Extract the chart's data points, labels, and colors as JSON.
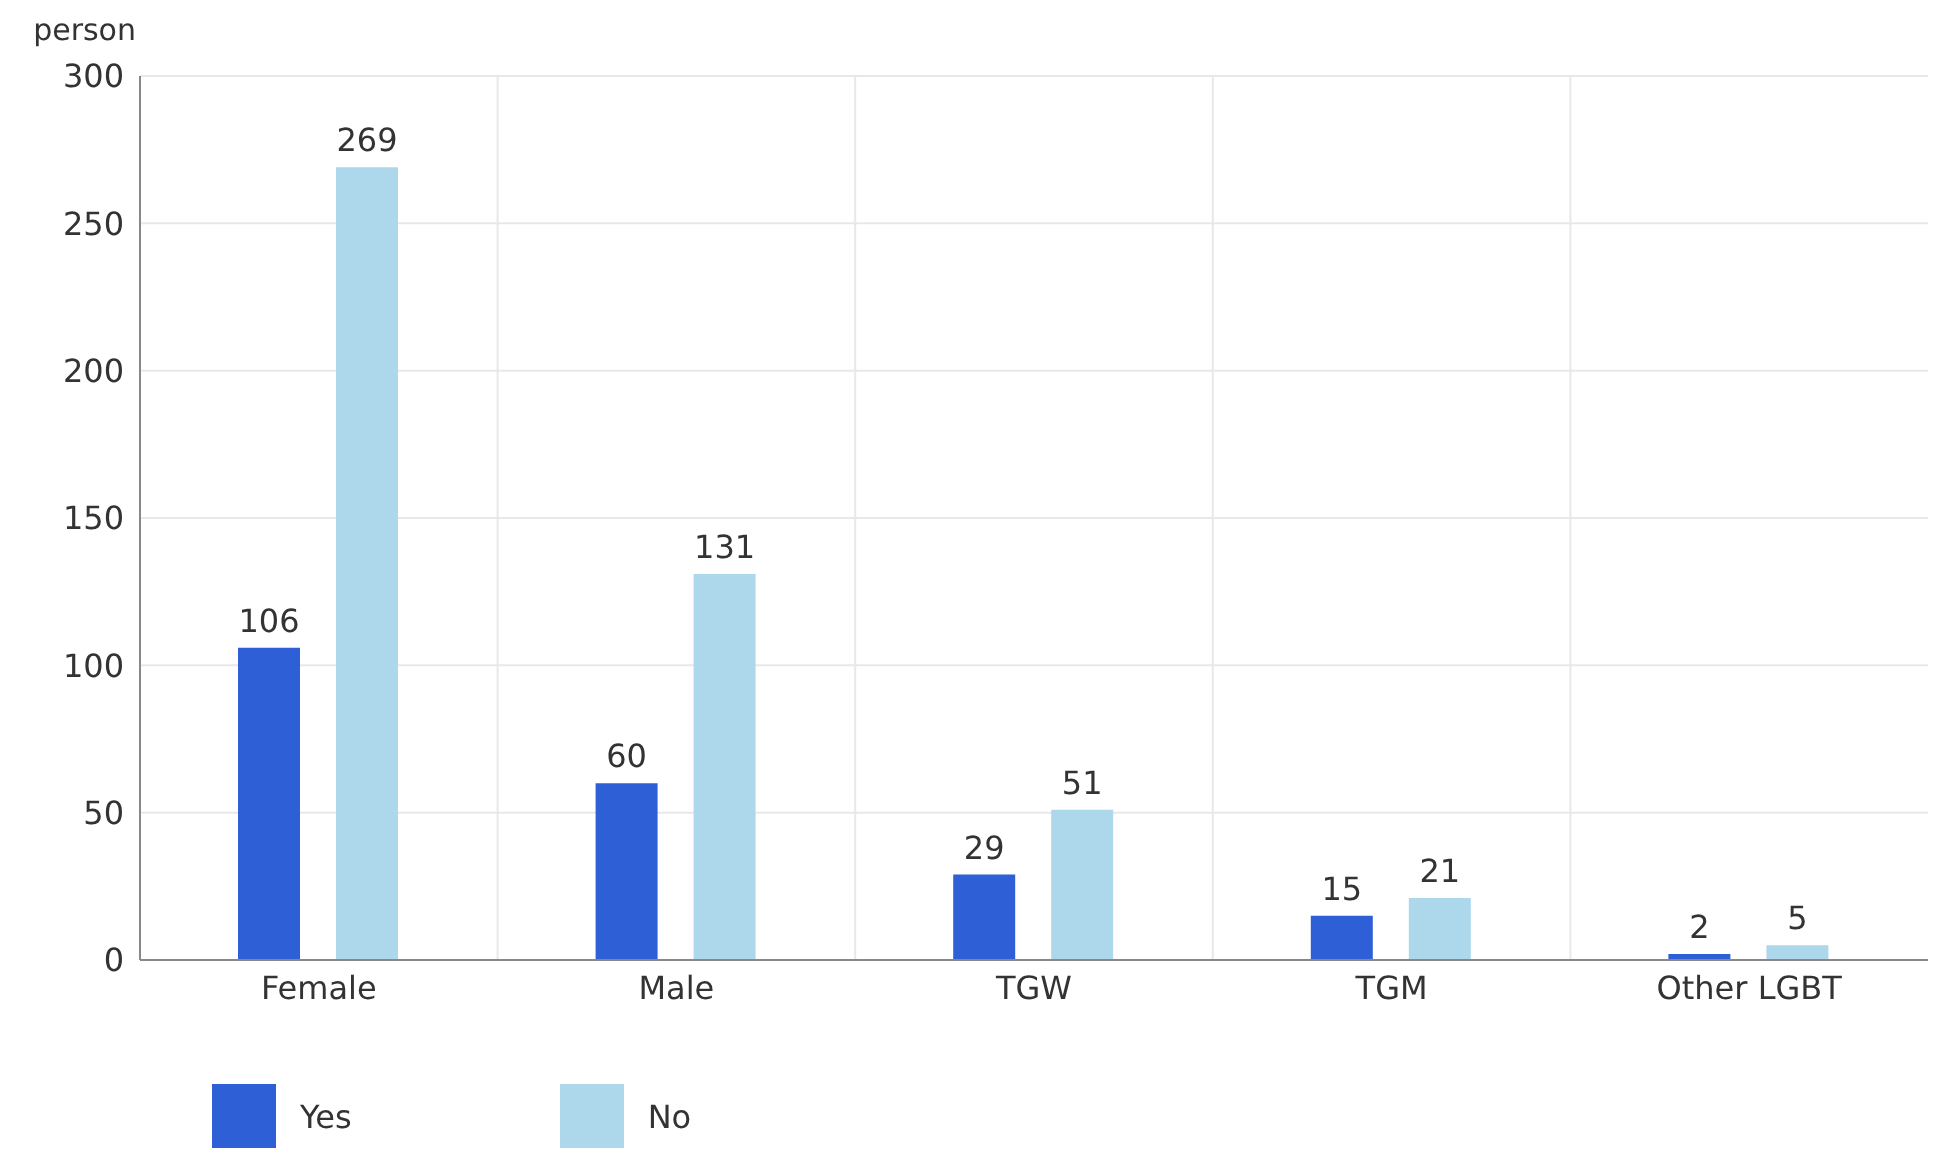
{
  "chart_data": {
    "type": "bar",
    "ylabel": "person",
    "categories": [
      "Female",
      "Male",
      "TGW",
      "TGM",
      "Other LGBT"
    ],
    "series": [
      {
        "name": "Yes",
        "color": "#2f5fd6",
        "values": [
          106,
          60,
          29,
          15,
          2
        ]
      },
      {
        "name": "No",
        "color": "#add8ec",
        "values": [
          269,
          131,
          51,
          21,
          5
        ]
      }
    ],
    "ylim": [
      0,
      300
    ],
    "yticks": [
      0,
      50,
      100,
      150,
      200,
      250,
      300
    ],
    "grid": true,
    "legend": "bottom left",
    "data_labels": true
  }
}
